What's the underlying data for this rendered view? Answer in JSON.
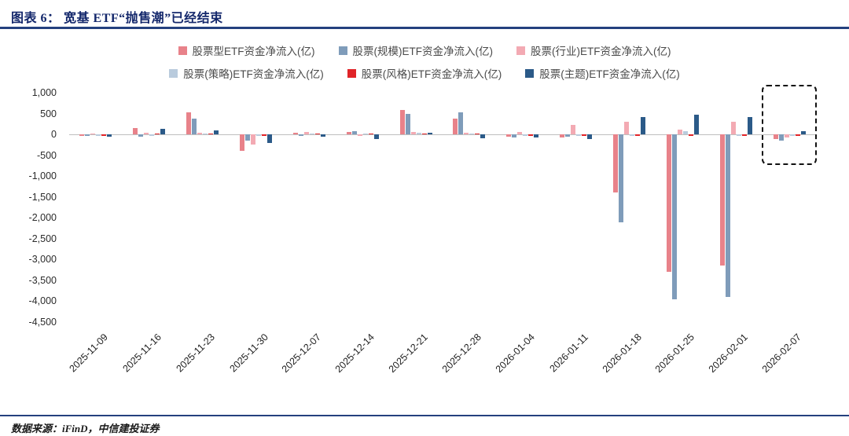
{
  "header": {
    "title": "图表 6：  宽基 ETF“抛售潮”已经结束"
  },
  "footer": {
    "source": "数据来源：iFinD，中信建投证券"
  },
  "chart_data": {
    "type": "bar",
    "title": "宽基 ETF“抛售潮”已经结束",
    "ylabel": "",
    "xlabel": "",
    "ylim": [
      -4500,
      1000
    ],
    "ytick_step": 500,
    "grid": false,
    "legend_position": "top-center",
    "categories": [
      "2025-11-09",
      "2025-11-16",
      "2025-11-23",
      "2025-11-30",
      "2025-12-07",
      "2025-12-14",
      "2025-12-21",
      "2025-12-28",
      "2026-01-04",
      "2026-01-11",
      "2026-01-18",
      "2026-01-25",
      "2026-02-01",
      "2026-02-07"
    ],
    "series": [
      {
        "name": "股票型ETF资金净流入(亿)",
        "color": "#e8828a",
        "values": [
          -30,
          150,
          520,
          -400,
          40,
          50,
          580,
          380,
          -60,
          -80,
          -1400,
          -3300,
          -3150,
          -120
        ]
      },
      {
        "name": "股票(规模)ETF资金净流入(亿)",
        "color": "#7f9cba",
        "values": [
          -40,
          -60,
          380,
          -150,
          -30,
          80,
          500,
          520,
          -80,
          -60,
          -2100,
          -3950,
          -3900,
          -150
        ]
      },
      {
        "name": "股票(行业)ETF资金净流入(亿)",
        "color": "#f3aab3",
        "values": [
          10,
          30,
          40,
          -250,
          50,
          -40,
          60,
          30,
          50,
          220,
          300,
          120,
          300,
          -80
        ]
      },
      {
        "name": "股票(策略)ETF资金净流入(亿)",
        "color": "#b9cbdd",
        "values": [
          -5,
          -10,
          10,
          -20,
          5,
          10,
          30,
          20,
          -10,
          -10,
          -30,
          80,
          -40,
          -20
        ]
      },
      {
        "name": "股票(风格)ETF资金净流入(亿)",
        "color": "#e02428",
        "values": [
          -5,
          5,
          5,
          -10,
          5,
          5,
          10,
          10,
          -5,
          -5,
          -10,
          -20,
          -10,
          -10
        ]
      },
      {
        "name": "股票(主题)ETF资金净流入(亿)",
        "color": "#2b5a88",
        "values": [
          -60,
          140,
          100,
          -200,
          -60,
          -120,
          40,
          -100,
          -80,
          -120,
          420,
          480,
          420,
          80
        ]
      }
    ],
    "legend_rows": [
      [
        0,
        1,
        2
      ],
      [
        3,
        4,
        5
      ]
    ],
    "highlight": {
      "category_index": 13,
      "style": "dashed-box"
    }
  }
}
